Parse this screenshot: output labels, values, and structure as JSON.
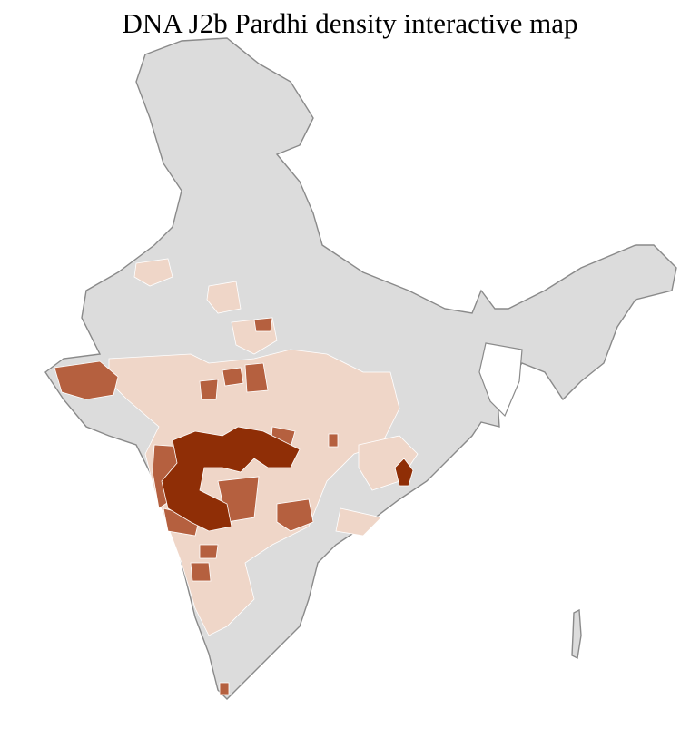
{
  "title": "DNA J2b Pardhi density interactive map",
  "colors": {
    "no_data": "#dcdcdc",
    "low": "#efd6c8",
    "medium": "#b5603f",
    "high": "#8f2e06",
    "state_border": "#8a8a8a",
    "district_border": "#ffffff"
  }
}
